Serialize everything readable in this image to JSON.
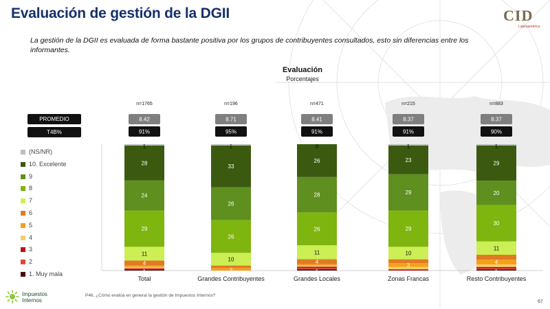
{
  "slide": {
    "title": "Evaluación de gestión de la DGII",
    "subtitle": "La gestión de la DGII es evaluada de forma bastante positiva por los grupos de contribuyentes consultados, esto sin diferencias entre los informantes.",
    "footnote": "P46. ¿Cómo evalúa en general la gestión de Impuestos Internos?",
    "page_number": "67"
  },
  "logos": {
    "cid_text": "CID",
    "cid_sub": "Latinoamérica",
    "footer_text_line1": "Impuestos",
    "footer_text_line2": "Internos"
  },
  "row_labels": {
    "promedio": "PROMEDIO",
    "t4b": "T4B%"
  },
  "colors": {
    "label_box": "#7f7f7f",
    "stat_dark": "#111111"
  },
  "chart_data": {
    "type": "bar",
    "stacked": true,
    "title": "Evaluación",
    "subtitle": "Porcentajes",
    "categories": [
      "Total",
      "Grandes Contribuyentes",
      "Grandes Locales",
      "Zonas Francas",
      "Resto Contribuyentes"
    ],
    "n": [
      "n=1765",
      "n=196",
      "n=471",
      "n=215",
      "n=883"
    ],
    "promedio": [
      "8.42",
      "8.71",
      "8.41",
      "8.37",
      "8.37"
    ],
    "t4b": [
      "91%",
      "95%",
      "91%",
      "91%",
      "90%"
    ],
    "ylim": [
      0,
      100
    ],
    "legend_position": "left",
    "series": [
      {
        "name": "1. Muy mala",
        "color": "#4a0a0a",
        "values": [
          1,
          0,
          1,
          0,
          1
        ]
      },
      {
        "name": "2",
        "color": "#e0473a",
        "values": [
          1,
          0,
          1,
          0,
          1
        ]
      },
      {
        "name": "3",
        "color": "#b41515",
        "values": [
          0,
          0,
          1,
          1,
          1
        ]
      },
      {
        "name": "4",
        "color": "#f6cf6a",
        "values": [
          1,
          0,
          1,
          2,
          2
        ]
      },
      {
        "name": "5",
        "color": "#f5a017",
        "values": [
          1,
          2,
          1,
          3,
          4
        ]
      },
      {
        "name": "6",
        "color": "#e07a25",
        "values": [
          4,
          2,
          4,
          3,
          4
        ]
      },
      {
        "name": "7",
        "color": "#cbef54",
        "values": [
          11,
          10,
          11,
          10,
          11
        ]
      },
      {
        "name": "8",
        "color": "#7fb50f",
        "values": [
          29,
          26,
          26,
          29,
          30
        ]
      },
      {
        "name": "9",
        "color": "#5f8f1f",
        "values": [
          24,
          26,
          28,
          29,
          20
        ]
      },
      {
        "name": "10. Excelente",
        "color": "#3b5a10",
        "values": [
          28,
          33,
          26,
          23,
          29
        ]
      },
      {
        "name": "(NS/NR)",
        "color": "#bfbfbf",
        "values": [
          1,
          1,
          0,
          1,
          1
        ]
      }
    ],
    "visible_labels": {
      "1. Muy mala": [
        "1",
        "0",
        "1",
        "0",
        "1"
      ],
      "2": [
        "",
        "",
        "",
        "",
        ""
      ],
      "3": [
        "",
        "",
        "",
        "",
        ""
      ],
      "4": [
        "",
        "",
        "",
        "",
        ""
      ],
      "5": [
        "",
        "2",
        "",
        "3",
        "4"
      ],
      "6": [
        "4",
        "",
        "4",
        "",
        ""
      ],
      "7": [
        "11",
        "10",
        "11",
        "10",
        "11"
      ],
      "8": [
        "29",
        "26",
        "26",
        "29",
        "30"
      ],
      "9": [
        "24",
        "26",
        "28",
        "29",
        "20"
      ],
      "10. Excelente": [
        "28",
        "33",
        "26",
        "23",
        "29"
      ],
      "(NS/NR)": [
        "1",
        "1",
        "0",
        "1",
        "1"
      ]
    }
  }
}
